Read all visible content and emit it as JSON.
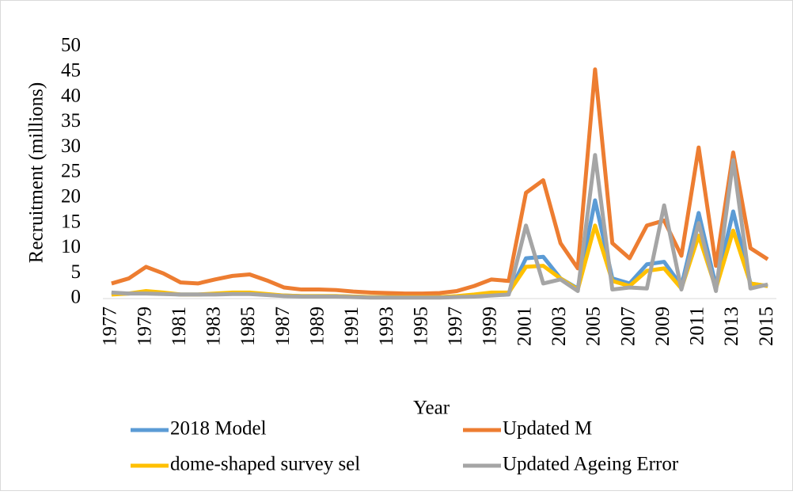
{
  "chart_data": {
    "type": "line",
    "y_label": "Recruitment (millions)",
    "x_label": "Year",
    "categories": [
      "1977",
      null,
      "1979",
      null,
      "1981",
      null,
      "1983",
      null,
      "1985",
      null,
      "1987",
      null,
      "1989",
      null,
      "1991",
      null,
      "1993",
      null,
      "1995",
      null,
      "1997",
      null,
      "1999",
      null,
      "2001",
      null,
      "2003",
      null,
      "2005",
      null,
      "2007",
      null,
      "2009",
      null,
      "2011",
      null,
      "2013",
      null,
      "2015"
    ],
    "ylim": [
      0,
      50
    ],
    "yticks": [
      0,
      5,
      10,
      15,
      20,
      25,
      30,
      35,
      40,
      45,
      50
    ],
    "grid": false,
    "series": [
      {
        "name": "2018 Model",
        "color": "#5b9bd5",
        "values": [
          1,
          1,
          1.2,
          1,
          0.8,
          0.8,
          0.9,
          1,
          1,
          0.8,
          0.6,
          0.5,
          0.5,
          0.5,
          0.4,
          0.3,
          0.3,
          0.3,
          0.3,
          0.3,
          0.4,
          0.5,
          0.8,
          1,
          8,
          8.3,
          4,
          2,
          19.5,
          4,
          3,
          6.8,
          7.3,
          2.5,
          17,
          2.5,
          17.3,
          3,
          2.5
        ]
      },
      {
        "name": "Updated M",
        "color": "#ed7d31",
        "values": [
          3,
          4,
          6.3,
          5,
          3.2,
          3,
          3.8,
          4.5,
          4.8,
          3.6,
          2.2,
          1.8,
          1.8,
          1.7,
          1.4,
          1.2,
          1.1,
          1,
          1,
          1.1,
          1.5,
          2.5,
          3.8,
          3.5,
          21,
          23.5,
          11,
          6,
          45.5,
          11,
          8,
          14.5,
          15.5,
          8.5,
          30,
          6.5,
          29,
          10,
          7.8
        ]
      },
      {
        "name": "dome-shaped survey sel",
        "color": "#ffc000",
        "values": [
          0.8,
          1,
          1.5,
          1.2,
          0.8,
          0.8,
          1,
          1.2,
          1.2,
          0.9,
          0.6,
          0.5,
          0.5,
          0.5,
          0.4,
          0.3,
          0.3,
          0.3,
          0.3,
          0.3,
          0.5,
          0.8,
          1.2,
          1.2,
          6.3,
          6.5,
          4,
          1.8,
          14.5,
          3.5,
          2.5,
          5.5,
          6,
          2,
          12.5,
          2,
          13.5,
          3,
          2.5
        ]
      },
      {
        "name": "Updated Ageing Error",
        "color": "#a5a5a5",
        "values": [
          1.2,
          1,
          1,
          0.9,
          0.8,
          0.8,
          0.8,
          0.9,
          0.9,
          0.7,
          0.5,
          0.4,
          0.4,
          0.4,
          0.3,
          0.2,
          0.2,
          0.2,
          0.2,
          0.2,
          0.3,
          0.4,
          0.6,
          0.8,
          14.5,
          3,
          3.8,
          1.5,
          28.5,
          1.8,
          2.2,
          2,
          18.5,
          1.8,
          15,
          1.5,
          27.5,
          2,
          2.8
        ]
      }
    ]
  }
}
